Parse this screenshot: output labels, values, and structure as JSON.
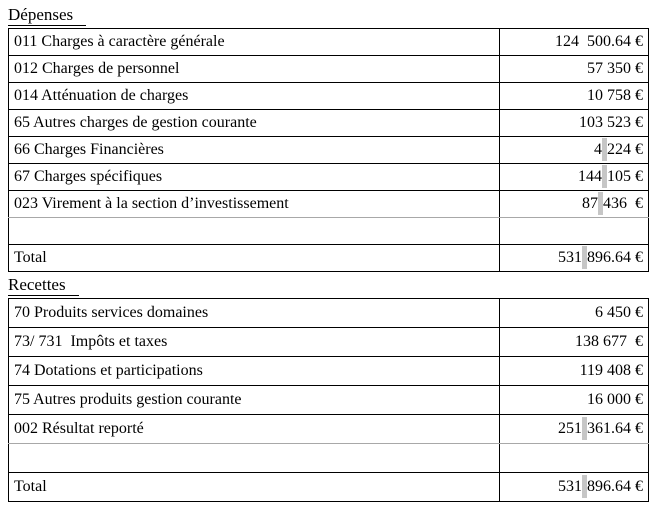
{
  "document": {
    "background_color": "#ffffff",
    "border_color": "#000000",
    "nbsp_highlight_color": "#c6c6c6",
    "currency": "€",
    "sections": [
      {
        "title": "Dépenses",
        "rows": [
          {
            "label": "011 Charges à caractère générale",
            "value": [
              {
                "t": "124  500.64 €"
              }
            ]
          },
          {
            "label": "012 Charges de personnel",
            "value": [
              {
                "t": "57 350 €"
              }
            ]
          },
          {
            "label": "014 Atténuation de charges",
            "value": [
              {
                "t": "10 758 €"
              }
            ]
          },
          {
            "label": "65 Autres charges de gestion courante",
            "value": [
              {
                "t": "103 523 €"
              }
            ]
          },
          {
            "label": "66 Charges Financières",
            "value": [
              {
                "t": "4"
              },
              {
                "t": " ",
                "hl": true
              },
              {
                "t": "224 €"
              }
            ]
          },
          {
            "label": "67 Charges spécifiques",
            "value": [
              {
                "t": "144"
              },
              {
                "t": " ",
                "hl": true
              },
              {
                "t": "105 €"
              }
            ]
          },
          {
            "label": "023 Virement à la section d’investissement",
            "value": [
              {
                "t": "87"
              },
              {
                "t": " ",
                "hl": true
              },
              {
                "t": "436  €"
              }
            ]
          },
          {
            "label": "",
            "value": [],
            "empty": true
          },
          {
            "label": "Total",
            "value": [
              {
                "t": "531"
              },
              {
                "t": " ",
                "hl": true
              },
              {
                "t": "896.64 €"
              }
            ],
            "total": true
          }
        ]
      },
      {
        "title": "Recettes",
        "rows": [
          {
            "label": "70 Produits services domaines",
            "value": [
              {
                "t": "6 450 €"
              }
            ]
          },
          {
            "label": "73/ 731  Impôts et taxes",
            "value": [
              {
                "t": "138 677  €"
              }
            ]
          },
          {
            "label": "74 Dotations et participations",
            "value": [
              {
                "t": "119 408 €"
              }
            ]
          },
          {
            "label": "75 Autres produits gestion courante",
            "value": [
              {
                "t": "16 000 €"
              }
            ]
          },
          {
            "label": "002 Résultat reporté",
            "value": [
              {
                "t": "251"
              },
              {
                "t": " ",
                "hl": true
              },
              {
                "t": "361.64 €"
              }
            ]
          },
          {
            "label": "",
            "value": [],
            "empty": true
          },
          {
            "label": "Total",
            "value": [
              {
                "t": "531"
              },
              {
                "t": " ",
                "hl": true
              },
              {
                "t": "896.64 €"
              }
            ],
            "total": true
          }
        ]
      }
    ]
  }
}
